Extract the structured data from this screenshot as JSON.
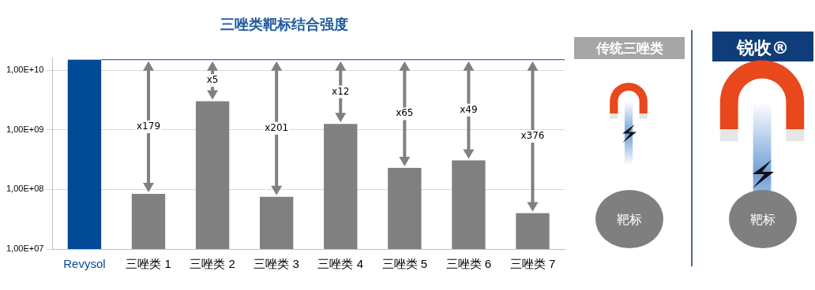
{
  "chart_data": {
    "type": "bar",
    "title": "三唑类靶标结合强度",
    "categories": [
      "Revysol",
      "三唑类 1",
      "三唑类 2",
      "三唑类 3",
      "三唑类 4",
      "三唑类 5",
      "三唑类 6",
      "三唑类 7"
    ],
    "values": [
      15000000000,
      84000000,
      3000000000,
      75000000,
      1250000000,
      230000000,
      306000000,
      40000000
    ],
    "colors": [
      "#004a96",
      "#808080",
      "#808080",
      "#808080",
      "#808080",
      "#808080",
      "#808080",
      "#808080"
    ],
    "ylim": [
      10000000,
      16000000000
    ],
    "yticks": [
      {
        "value": 10000000,
        "label": "1,00E+07"
      },
      {
        "value": 100000000,
        "label": "1,00E+08"
      },
      {
        "value": 1000000000,
        "label": "1,00E+09"
      },
      {
        "value": 10000000000,
        "label": "1,00E+10"
      }
    ],
    "log": "y",
    "grid": true,
    "annotations": [
      {
        "category": "三唑类 1",
        "text": "x179"
      },
      {
        "category": "三唑类 2",
        "text": "x5"
      },
      {
        "category": "三唑类 3",
        "text": "x201"
      },
      {
        "category": "三唑类 4",
        "text": "x12"
      },
      {
        "category": "三唑类 5",
        "text": "x65"
      },
      {
        "category": "三唑类 6",
        "text": "x49"
      },
      {
        "category": "三唑类 7",
        "text": "x376"
      }
    ]
  },
  "side_panels": [
    {
      "label": "传统三唑类",
      "target": "靶标"
    },
    {
      "label": "锐收®",
      "target": "靶标"
    }
  ]
}
